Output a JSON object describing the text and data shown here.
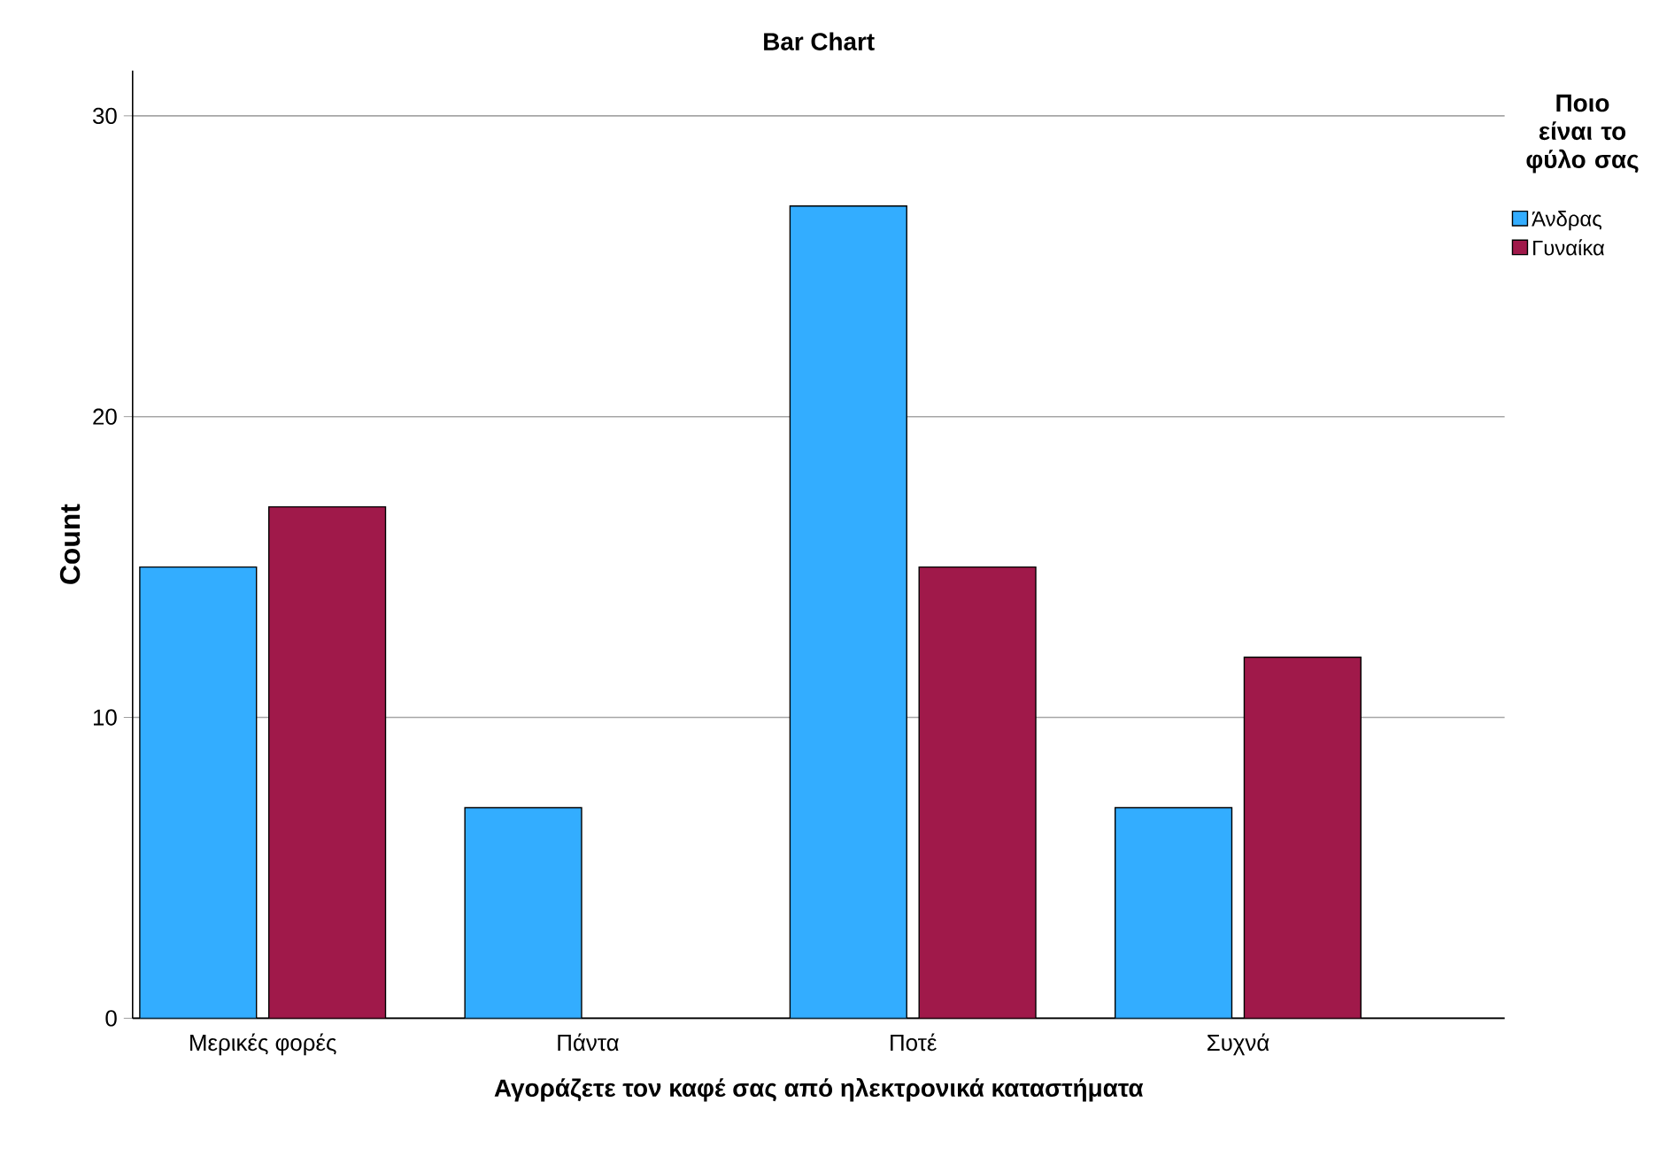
{
  "chart_data": {
    "type": "bar",
    "title": "Bar Chart",
    "xlabel": "Αγοράζετε τον καφέ σας από ηλεκτρονικά καταστήματα",
    "ylabel": "Count",
    "legend_title": "Ποιο είναι το φύλο σας",
    "categories": [
      "Μερικές φορές",
      "Πάντα",
      "Ποτέ",
      "Συχνά"
    ],
    "series": [
      {
        "name": "Άνδρας",
        "color": "#33adff",
        "values": [
          15,
          7,
          27,
          7
        ]
      },
      {
        "name": "Γυναίκα",
        "color": "#a0194a",
        "values": [
          17,
          null,
          15,
          12
        ]
      }
    ],
    "ylim": [
      0,
      31.5
    ],
    "yticks": [
      0,
      10,
      20,
      30
    ],
    "grid": "y",
    "legend": "top right"
  }
}
